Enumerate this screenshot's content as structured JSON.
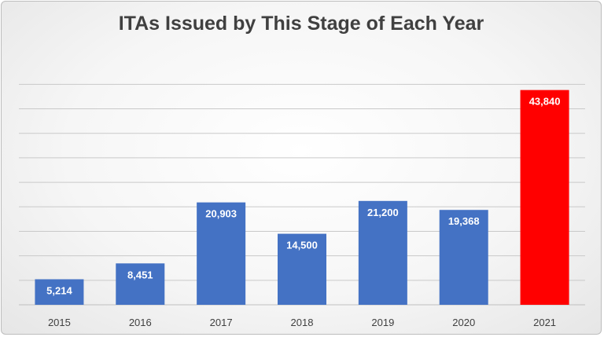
{
  "chart_data": {
    "type": "bar",
    "title": "ITAs Issued by This Stage of Each Year",
    "categories": [
      "2015",
      "2016",
      "2017",
      "2018",
      "2019",
      "2020",
      "2021"
    ],
    "values": [
      5214,
      8451,
      20903,
      14500,
      21200,
      19368,
      43840
    ],
    "value_labels": [
      "5,214",
      "8,451",
      "20,903",
      "14,500",
      "21,200",
      "19,368",
      "43,840"
    ],
    "bar_colors": [
      "#4472c4",
      "#4472c4",
      "#4472c4",
      "#4472c4",
      "#4472c4",
      "#4472c4",
      "#ff0000"
    ],
    "ylim": [
      0,
      45000
    ],
    "ytick_step": 5000,
    "grid": true,
    "xlabel": "",
    "ylabel": ""
  }
}
